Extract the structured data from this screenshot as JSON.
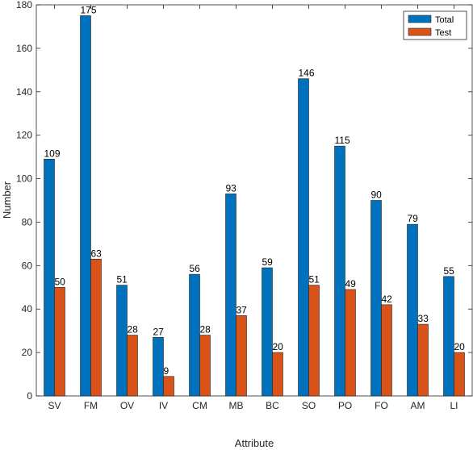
{
  "chart_data": {
    "type": "bar",
    "categories": [
      "SV",
      "FM",
      "OV",
      "IV",
      "CM",
      "MB",
      "BC",
      "SO",
      "PO",
      "FO",
      "AM",
      "LI"
    ],
    "series": [
      {
        "name": "Total",
        "color": "#0072BD",
        "values": [
          109,
          175,
          51,
          27,
          56,
          93,
          59,
          146,
          115,
          90,
          79,
          55
        ]
      },
      {
        "name": "Test",
        "color": "#D95319",
        "values": [
          50,
          63,
          28,
          9,
          28,
          37,
          20,
          51,
          49,
          42,
          33,
          20
        ]
      }
    ],
    "title": "",
    "xlabel": "Attribute",
    "ylabel": "Number",
    "ylim": [
      0,
      180
    ],
    "yticks": [
      0,
      20,
      40,
      60,
      80,
      100,
      120,
      140,
      160,
      180
    ],
    "grid": false,
    "legend_position": "top-right"
  }
}
